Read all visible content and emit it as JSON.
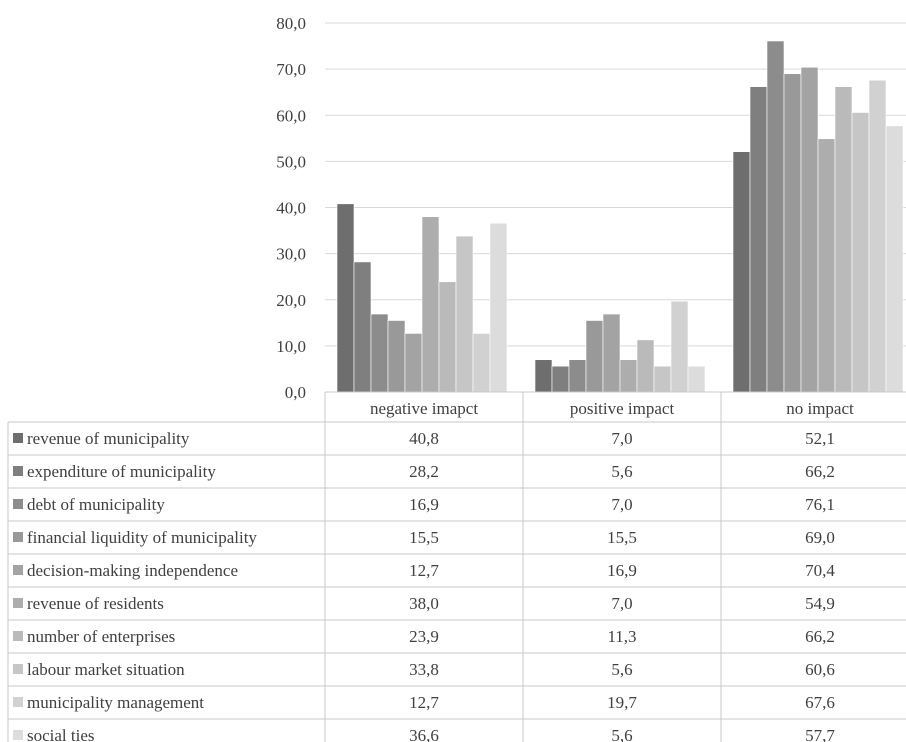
{
  "chart_data": {
    "type": "bar",
    "title": "",
    "xlabel": "",
    "ylabel": "",
    "ylim": [
      0,
      80
    ],
    "yticks": [
      "0,0",
      "10,0",
      "20,0",
      "30,0",
      "40,0",
      "50,0",
      "60,0",
      "70,0",
      "80,0"
    ],
    "grid": true,
    "legend_position": "data-table",
    "categories": [
      "negative imapct",
      "positive impact",
      "no impact"
    ],
    "series": [
      {
        "name": "revenue of municipality",
        "values": [
          40.8,
          7.0,
          52.1
        ],
        "labels": [
          "40,8",
          "7,0",
          "52,1"
        ],
        "color": "#6e6e6e"
      },
      {
        "name": "expenditure of municipality",
        "values": [
          28.2,
          5.6,
          66.2
        ],
        "labels": [
          "28,2",
          "5,6",
          "66,2"
        ],
        "color": "#7f7f7f"
      },
      {
        "name": "debt of municipality",
        "values": [
          16.9,
          7.0,
          76.1
        ],
        "labels": [
          "16,9",
          "7,0",
          "76,1"
        ],
        "color": "#8c8c8c"
      },
      {
        "name": "financial liquidity of municipality",
        "values": [
          15.5,
          15.5,
          69.0
        ],
        "labels": [
          "15,5",
          "15,5",
          "69,0"
        ],
        "color": "#999999"
      },
      {
        "name": "decision-making independence",
        "values": [
          12.7,
          16.9,
          70.4
        ],
        "labels": [
          "12,7",
          "16,9",
          "70,4"
        ],
        "color": "#a3a3a3"
      },
      {
        "name": "revenue of residents",
        "values": [
          38.0,
          7.0,
          54.9
        ],
        "labels": [
          "38,0",
          "7,0",
          "54,9"
        ],
        "color": "#adadad"
      },
      {
        "name": "number of enterprises",
        "values": [
          23.9,
          11.3,
          66.2
        ],
        "labels": [
          "23,9",
          "11,3",
          "66,2"
        ],
        "color": "#bababa"
      },
      {
        "name": "labour market situation",
        "values": [
          33.8,
          5.6,
          60.6
        ],
        "labels": [
          "33,8",
          "5,6",
          "60,6"
        ],
        "color": "#c6c6c6"
      },
      {
        "name": "municipality management",
        "values": [
          12.7,
          19.7,
          67.6
        ],
        "labels": [
          "12,7",
          "19,7",
          "67,6"
        ],
        "color": "#d1d1d1"
      },
      {
        "name": "social ties",
        "values": [
          36.6,
          5.6,
          57.7
        ],
        "labels": [
          "36,6",
          "5,6",
          "57,7"
        ],
        "color": "#dcdcdc"
      }
    ]
  }
}
